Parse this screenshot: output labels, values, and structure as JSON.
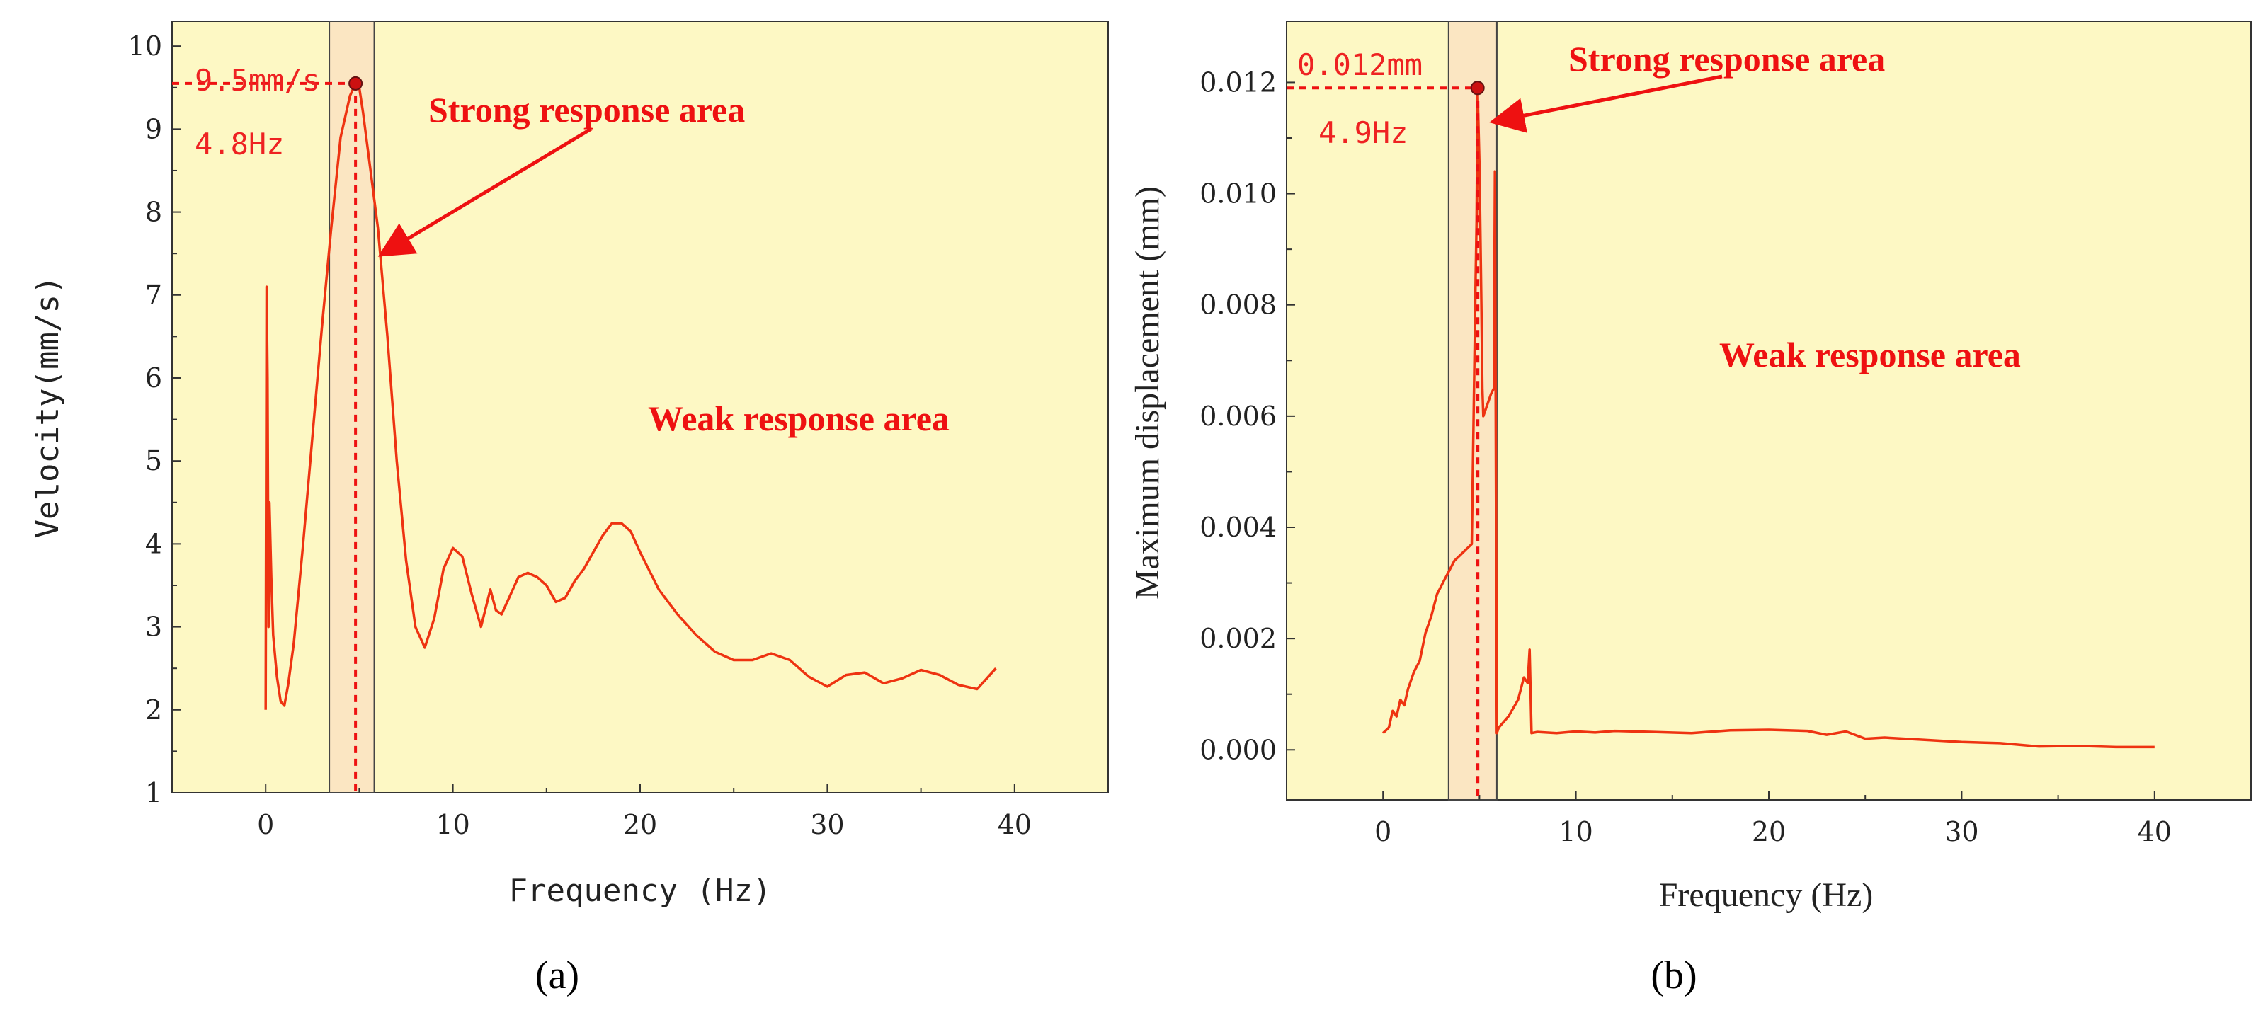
{
  "chart_data": [
    {
      "id": "a",
      "type": "line",
      "caption": "(a)",
      "xlabel": "Frequency (Hz)",
      "ylabel": "Velocity(mm/s)",
      "xlim": [
        -5,
        45
      ],
      "ylim": [
        1,
        10.3
      ],
      "xticks": [
        0,
        10,
        20,
        30,
        40
      ],
      "yticks": [
        1,
        2,
        3,
        4,
        5,
        6,
        7,
        8,
        9,
        10
      ],
      "xtick_labels": [
        "0",
        "10",
        "20",
        "30",
        "40"
      ],
      "ytick_labels": [
        "1",
        "2",
        "3",
        "4",
        "5",
        "6",
        "7",
        "8",
        "9",
        "10"
      ],
      "band": [
        3.4,
        5.8
      ],
      "peak": {
        "x": 4.8,
        "y": 9.55,
        "value_label": "9.5mm/s",
        "freq_label": "4.8Hz"
      },
      "strong_label": "Strong response area",
      "weak_label": "Weak response area",
      "series": [
        {
          "name": "velocity",
          "color": "#ee3311",
          "x": [
            0,
            0.05,
            0.1,
            0.15,
            0.2,
            0.3,
            0.4,
            0.6,
            0.8,
            1.0,
            1.2,
            1.5,
            2.0,
            2.5,
            3.0,
            3.5,
            4.0,
            4.5,
            4.8,
            5.0,
            5.2,
            5.6,
            6.0,
            6.5,
            7.0,
            7.5,
            8.0,
            8.5,
            9.0,
            9.5,
            10.0,
            10.5,
            11.0,
            11.5,
            12.0,
            12.3,
            12.6,
            13.0,
            13.5,
            14.0,
            14.5,
            15.0,
            15.5,
            16.0,
            16.5,
            17.0,
            17.5,
            18.0,
            18.5,
            19.0,
            19.5,
            20.0,
            21.0,
            22.0,
            23.0,
            24.0,
            25.0,
            26.0,
            27.0,
            28.0,
            29.0,
            30.0,
            31.0,
            32.0,
            33.0,
            34.0,
            35.0,
            36.0,
            37.0,
            38.0,
            39.0
          ],
          "y": [
            2.0,
            7.1,
            6.0,
            3.0,
            4.5,
            3.6,
            2.9,
            2.4,
            2.1,
            2.05,
            2.3,
            2.8,
            4.0,
            5.3,
            6.6,
            7.8,
            8.9,
            9.4,
            9.55,
            9.5,
            9.2,
            8.5,
            7.8,
            6.5,
            5.0,
            3.8,
            3.0,
            2.75,
            3.1,
            3.7,
            3.95,
            3.85,
            3.4,
            3.0,
            3.45,
            3.2,
            3.15,
            3.35,
            3.6,
            3.65,
            3.6,
            3.5,
            3.3,
            3.35,
            3.55,
            3.7,
            3.9,
            4.1,
            4.25,
            4.25,
            4.15,
            3.9,
            3.45,
            3.15,
            2.9,
            2.7,
            2.6,
            2.6,
            2.68,
            2.6,
            2.4,
            2.28,
            2.42,
            2.45,
            2.32,
            2.38,
            2.48,
            2.42,
            2.3,
            2.25,
            2.5
          ]
        }
      ]
    },
    {
      "id": "b",
      "type": "line",
      "caption": "(b)",
      "xlabel": "Frequency (Hz)",
      "ylabel": "Maximum displacement (mm)",
      "xlim": [
        -5,
        45
      ],
      "ylim": [
        -0.0009,
        0.0131
      ],
      "xticks": [
        0,
        10,
        20,
        30,
        40
      ],
      "yticks": [
        0.0,
        0.002,
        0.004,
        0.006,
        0.008,
        0.01,
        0.012
      ],
      "xtick_labels": [
        "0",
        "10",
        "20",
        "30",
        "40"
      ],
      "ytick_labels": [
        "0.000",
        "0.002",
        "0.004",
        "0.006",
        "0.008",
        "0.010",
        "0.012"
      ],
      "band": [
        3.4,
        5.9
      ],
      "peak": {
        "x": 4.9,
        "y": 0.0119,
        "value_label": "0.012mm",
        "freq_label": "4.9Hz"
      },
      "strong_label": "Strong response area",
      "weak_label": "Weak response area",
      "series": [
        {
          "name": "displacement",
          "color": "#ee3311",
          "x": [
            0,
            0.3,
            0.5,
            0.7,
            0.9,
            1.1,
            1.3,
            1.6,
            1.9,
            2.2,
            2.5,
            2.8,
            3.1,
            3.4,
            3.7,
            4.0,
            4.3,
            4.6,
            4.8,
            4.85,
            4.9,
            5.0,
            5.1,
            5.15,
            5.2,
            5.4,
            5.6,
            5.75,
            5.8,
            5.85,
            5.9,
            6.0,
            6.5,
            7.0,
            7.3,
            7.5,
            7.6,
            7.7,
            8.0,
            9.0,
            10.0,
            11.0,
            12.0,
            14.0,
            16.0,
            18.0,
            20.0,
            22.0,
            23.0,
            24.0,
            25.0,
            26.0,
            28.0,
            30.0,
            32.0,
            34.0,
            36.0,
            38.0,
            40.0
          ],
          "y": [
            0.0003,
            0.0004,
            0.0007,
            0.0006,
            0.0009,
            0.0008,
            0.0011,
            0.0014,
            0.0016,
            0.0021,
            0.0024,
            0.0028,
            0.003,
            0.0032,
            0.0034,
            0.0035,
            0.0036,
            0.0037,
            0.0085,
            0.0095,
            0.0119,
            0.0105,
            0.008,
            0.0065,
            0.006,
            0.0062,
            0.0064,
            0.0065,
            0.0104,
            0.005,
            0.0003,
            0.0004,
            0.0006,
            0.0009,
            0.0013,
            0.0012,
            0.0018,
            0.0003,
            0.00032,
            0.0003,
            0.00033,
            0.00031,
            0.00034,
            0.00032,
            0.0003,
            0.00035,
            0.00036,
            0.00034,
            0.00027,
            0.00033,
            0.0002,
            0.00022,
            0.00018,
            0.00014,
            0.00012,
            6e-05,
            7e-05,
            5e-05,
            5e-05
          ]
        }
      ]
    }
  ],
  "colors": {
    "plot_bg": "#fdf8c4",
    "band": "#fbe6c2",
    "red": "#ee1111",
    "line": "#ee3311"
  }
}
